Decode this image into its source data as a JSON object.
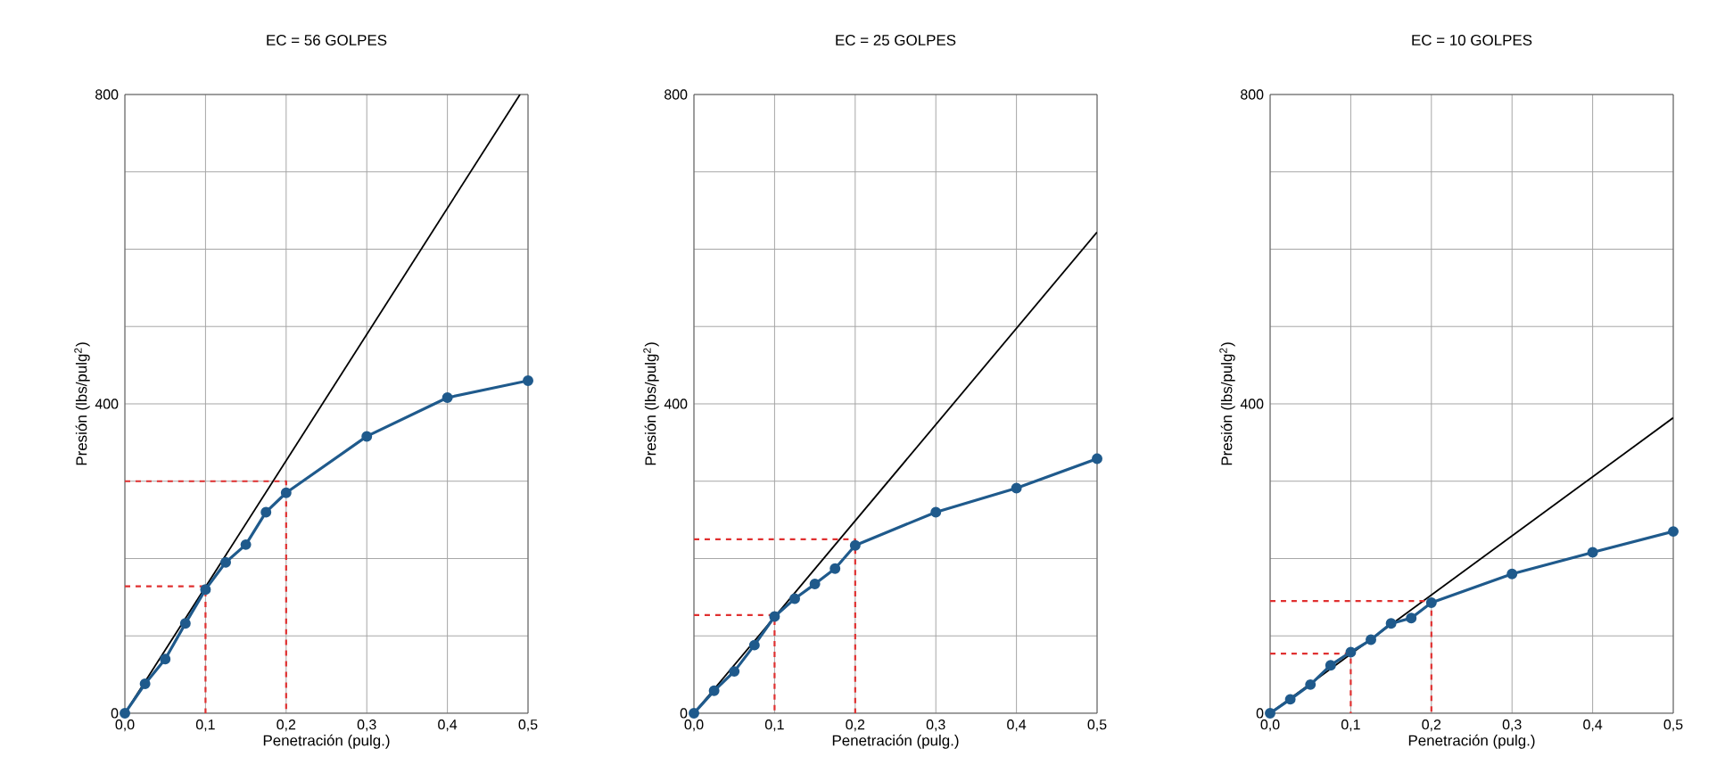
{
  "chart_data": [
    {
      "type": "line",
      "title": "EC = 56 GOLPES",
      "xlabel": "Penetración (pulg.)",
      "ylabel": "Presión (lbs/pulg$^{2}$)",
      "xlim": [
        0,
        0.5
      ],
      "ylim": [
        0,
        800
      ],
      "xticks": [
        {
          "value": 0,
          "label": "0,0"
        },
        {
          "value": 0.1,
          "label": "0,1"
        },
        {
          "value": 0.2,
          "label": "0,2"
        },
        {
          "value": 0.3,
          "label": "0,3"
        },
        {
          "value": 0.4,
          "label": "0,4"
        },
        {
          "value": 0.5,
          "label": "0,5"
        }
      ],
      "yticks": [
        0,
        {
          "value": 100,
          "label": null
        },
        {
          "value": 200,
          "label": null
        },
        {
          "value": 300,
          "label": null
        },
        400,
        {
          "value": 500,
          "label": null
        },
        {
          "value": 600,
          "label": null
        },
        {
          "value": 700,
          "label": null
        },
        800
      ],
      "grid": true,
      "series": [
        {
          "color": "#000000",
          "marker": "none",
          "line_style": "solid",
          "x": [
            0,
            0.49
          ],
          "values": [
            0,
            800
          ]
        },
        {
          "color": "#e03030",
          "marker": "none",
          "line_style": "dashed",
          "x": [
            0,
            0.2,
            0.2
          ],
          "values": [
            300,
            300,
            0
          ]
        },
        {
          "color": "#e03030",
          "marker": "none",
          "line_style": "dashed",
          "x": [
            0,
            0.1,
            0.1
          ],
          "values": [
            164,
            164,
            0
          ]
        },
        {
          "color": "#1f5a8c",
          "marker": "circle",
          "line_style": "solid",
          "x": [
            0,
            0.025,
            0.05,
            0.075,
            0.1,
            0.125,
            0.15,
            0.175,
            0.2,
            0.3,
            0.4,
            0.5
          ],
          "values": [
            0,
            38,
            70,
            116,
            160,
            195,
            218,
            260,
            285,
            358,
            408,
            430
          ]
        }
      ]
    },
    {
      "type": "line",
      "title": "EC = 25 GOLPES",
      "xlabel": "Penetración (pulg.)",
      "ylabel": "Presión (lbs/pulg$^{2}$)",
      "xlim": [
        0,
        0.5
      ],
      "ylim": [
        0,
        800
      ],
      "xticks": [
        {
          "value": 0,
          "label": "0,0"
        },
        {
          "value": 0.1,
          "label": "0,1"
        },
        {
          "value": 0.2,
          "label": "0,2"
        },
        {
          "value": 0.3,
          "label": "0,3"
        },
        {
          "value": 0.4,
          "label": "0,4"
        },
        {
          "value": 0.5,
          "label": "0,5"
        }
      ],
      "yticks": [
        0,
        {
          "value": 100,
          "label": null
        },
        {
          "value": 200,
          "label": null
        },
        {
          "value": 300,
          "label": null
        },
        400,
        {
          "value": 500,
          "label": null
        },
        {
          "value": 600,
          "label": null
        },
        {
          "value": 700,
          "label": null
        },
        800
      ],
      "grid": true,
      "series": [
        {
          "color": "#000000",
          "marker": "none",
          "line_style": "solid",
          "x": [
            0,
            0.5
          ],
          "values": [
            0,
            622
          ]
        },
        {
          "color": "#e03030",
          "marker": "none",
          "line_style": "dashed",
          "x": [
            0,
            0.2,
            0.2
          ],
          "values": [
            225,
            225,
            0
          ]
        },
        {
          "color": "#e03030",
          "marker": "none",
          "line_style": "dashed",
          "x": [
            0,
            0.1,
            0.1
          ],
          "values": [
            127,
            127,
            0
          ]
        },
        {
          "color": "#1f5a8c",
          "marker": "circle",
          "line_style": "solid",
          "x": [
            0,
            0.025,
            0.05,
            0.075,
            0.1,
            0.125,
            0.15,
            0.175,
            0.2,
            0.3,
            0.4,
            0.5
          ],
          "values": [
            0,
            29,
            54,
            88,
            125,
            148,
            167,
            187,
            217,
            260,
            291,
            329
          ]
        }
      ]
    },
    {
      "type": "line",
      "title": "EC = 10 GOLPES",
      "xlabel": "Penetración (pulg.)",
      "ylabel": "Presión (lbs/pulg$^{2}$)",
      "xlim": [
        0,
        0.5
      ],
      "ylim": [
        0,
        800
      ],
      "xticks": [
        {
          "value": 0,
          "label": "0,0"
        },
        {
          "value": 0.1,
          "label": "0,1"
        },
        {
          "value": 0.2,
          "label": "0,2"
        },
        {
          "value": 0.3,
          "label": "0,3"
        },
        {
          "value": 0.4,
          "label": "0,4"
        },
        {
          "value": 0.5,
          "label": "0,5"
        }
      ],
      "yticks": [
        0,
        {
          "value": 100,
          "label": null
        },
        {
          "value": 200,
          "label": null
        },
        {
          "value": 300,
          "label": null
        },
        400,
        {
          "value": 500,
          "label": null
        },
        {
          "value": 600,
          "label": null
        },
        {
          "value": 700,
          "label": null
        },
        800
      ],
      "grid": true,
      "series": [
        {
          "color": "#000000",
          "marker": "none",
          "line_style": "solid",
          "x": [
            0,
            0.5
          ],
          "values": [
            0,
            382
          ]
        },
        {
          "color": "#e03030",
          "marker": "none",
          "line_style": "dashed",
          "x": [
            0,
            0.2,
            0.2
          ],
          "values": [
            145,
            145,
            0
          ]
        },
        {
          "color": "#e03030",
          "marker": "none",
          "line_style": "dashed",
          "x": [
            0,
            0.1,
            0.1
          ],
          "values": [
            77,
            77,
            0
          ]
        },
        {
          "color": "#1f5a8c",
          "marker": "circle",
          "line_style": "solid",
          "x": [
            0,
            0.025,
            0.05,
            0.075,
            0.1,
            0.125,
            0.15,
            0.175,
            0.2,
            0.3,
            0.4,
            0.5
          ],
          "values": [
            0,
            18,
            37,
            62,
            79,
            95,
            116,
            123,
            143,
            180,
            208,
            235
          ]
        }
      ]
    }
  ]
}
